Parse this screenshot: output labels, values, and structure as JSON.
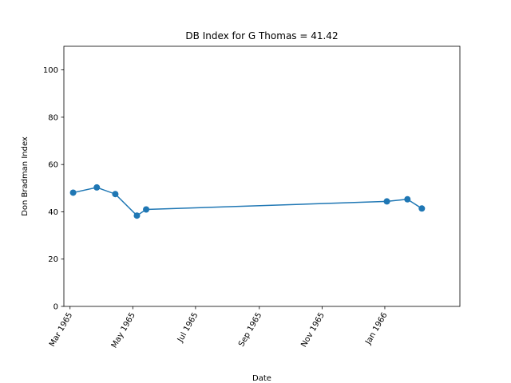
{
  "chart_data": {
    "type": "line",
    "title": "DB Index for G Thomas = 41.42",
    "xlabel": "Date",
    "ylabel": "Don Bradman Index",
    "ylim": [
      0,
      110
    ],
    "xlim": [
      "1965-02-23",
      "1966-03-15"
    ],
    "yticks": [
      0,
      20,
      40,
      60,
      80,
      100
    ],
    "xticks": [
      {
        "date": "1965-03-01",
        "label": "Mar 1965"
      },
      {
        "date": "1965-05-01",
        "label": "May 1965"
      },
      {
        "date": "1965-07-01",
        "label": "Jul 1965"
      },
      {
        "date": "1965-09-01",
        "label": "Sep 1965"
      },
      {
        "date": "1965-11-01",
        "label": "Nov 1965"
      },
      {
        "date": "1966-01-01",
        "label": "Jan 1966"
      }
    ],
    "grid": false,
    "legend": "none",
    "series": [
      {
        "color": "#1f77b4",
        "marker": "circle",
        "points": [
          {
            "x": "1965-03-04",
            "y": 48.1
          },
          {
            "x": "1965-03-27",
            "y": 50.3
          },
          {
            "x": "1965-04-14",
            "y": 47.5
          },
          {
            "x": "1965-05-05",
            "y": 38.4
          },
          {
            "x": "1965-05-14",
            "y": 41.0
          },
          {
            "x": "1966-01-03",
            "y": 44.4
          },
          {
            "x": "1966-01-23",
            "y": 45.3
          },
          {
            "x": "1966-02-06",
            "y": 41.4
          }
        ]
      }
    ]
  }
}
